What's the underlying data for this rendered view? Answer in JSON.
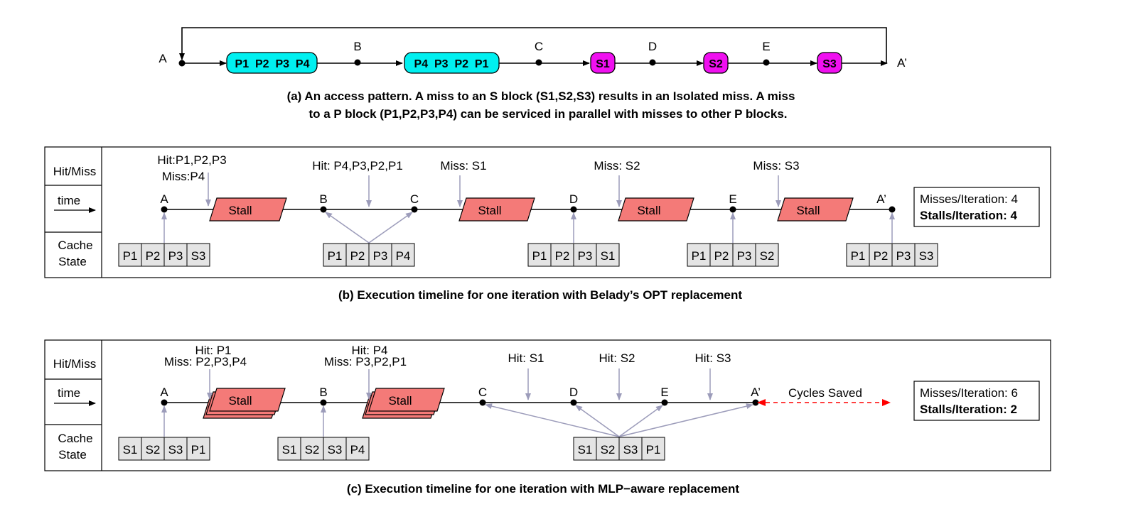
{
  "panel_a": {
    "points": {
      "A": "A",
      "B": "B",
      "C": "C",
      "D": "D",
      "E": "E",
      "A2": "A’"
    },
    "blocks": {
      "p_group1": "P1  P2  P3  P4",
      "p_group2": "P4  P3  P2  P1",
      "s1": "S1",
      "s2": "S2",
      "s3": "S3"
    },
    "caption_line1": "(a) An access pattern.  A miss to an S block (S1,S2,S3) results in an Isolated miss.  A miss",
    "caption_line2": "to a P block (P1,P2,P3,P4) can be serviced in parallel with misses to other P blocks."
  },
  "row_labels": {
    "hitmiss": "Hit/Miss",
    "time": "time",
    "cache1": "Cache",
    "cache2": "State"
  },
  "stall_label": "Stall",
  "panel_b": {
    "annotations": {
      "a_line1": "Hit:P1,P2,P3",
      "a_line2": "Miss:P4",
      "b": "Hit: P4,P3,P2,P1",
      "c": "Miss: S1",
      "d": "Miss: S2",
      "e": "Miss: S3"
    },
    "points": {
      "A": "A",
      "B": "B",
      "C": "C",
      "D": "D",
      "E": "E",
      "A2": "A’"
    },
    "cache_states": [
      [
        "P1",
        "P2",
        "P3",
        "S3"
      ],
      [
        "P1",
        "P2",
        "P3",
        "P4"
      ],
      [
        "P1",
        "P2",
        "P3",
        "S1"
      ],
      [
        "P1",
        "P2",
        "P3",
        "S2"
      ],
      [
        "P1",
        "P2",
        "P3",
        "S3"
      ]
    ],
    "summary": {
      "misses": "Misses/Iteration: 4",
      "stalls": "Stalls/Iteration: 4"
    },
    "caption": "(b) Execution timeline for one iteration with Belady’s OPT replacement"
  },
  "panel_c": {
    "annotations": {
      "a_line1": "Hit: P1",
      "a_line2": "Miss: P2,P3,P4",
      "b_line1": "Hit: P4",
      "b_line2": "Miss: P3,P2,P1",
      "c": "Hit: S1",
      "d": "Hit: S2",
      "e": "Hit: S3"
    },
    "points": {
      "A": "A",
      "B": "B",
      "C": "C",
      "D": "D",
      "E": "E",
      "A2": "A’"
    },
    "cycles_saved": "Cycles Saved",
    "cache_states": [
      [
        "S1",
        "S2",
        "S3",
        "P1"
      ],
      [
        "S1",
        "S2",
        "S3",
        "P4"
      ],
      [
        "S1",
        "S2",
        "S3",
        "P1"
      ]
    ],
    "summary": {
      "misses": "Misses/Iteration: 6",
      "stalls": "Stalls/Iteration: 2"
    },
    "caption": "(c) Execution timeline for one iteration with MLP−aware replacement"
  },
  "colors": {
    "p_block": "#00f0f0",
    "s_block": "#f010f0",
    "stall": "#f47a78",
    "cache_cell": "#e4e4e4",
    "arrow_up": "#9c9cba",
    "saved": "#ff0000"
  }
}
